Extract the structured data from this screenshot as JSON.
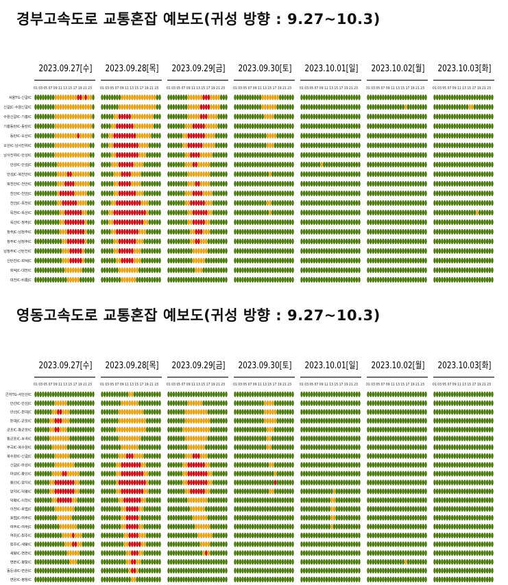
{
  "sections": [
    {
      "title": "경부고속도로 교통혼잡 예보도(귀성 방향 : 9.27~10.3)",
      "rows": [
        "서울TG-신갈IC",
        "신갈JC-수원신갈IC",
        "수원신갈IC-기흥IC",
        "기흥동탄IC-동탄IC",
        "동탄IC-오산IC",
        "오산IC-남사진위IC",
        "남사진위IC-안성IC",
        "안성IC-안성JC",
        "안성JC-북천안IC",
        "북천안IC-천안IC",
        "천안IC-천안JC",
        "천안JC-목천IC",
        "목천IC-옥산IC",
        "옥산IC-청주JC",
        "청주JC-남청주IC",
        "청주IC-남청주IC",
        "남청주IC-신탄진IC",
        "신탄진IC-회덕JC",
        "회덕JC-대전IC",
        "대전IC-비룡JC"
      ]
    },
    {
      "title": "영동고속도로 교통혼잡 예보도(귀성 방향 : 9.27~10.3)",
      "rows": [
        "군자TG-서안산IC",
        "안산IC-안산JC",
        "안산JC-둔대JC",
        "둔대JC-군포IC",
        "군포IC-동군포IC",
        "동군포IC-부곡IC",
        "부곡IC-북수원IC",
        "북수원IC-신갈JC",
        "신갈JC-마성IC",
        "마성IC-용인IC",
        "용인IC-양지IC",
        "양지IC-덕평IC",
        "덕평IC-이천IC",
        "이천IC-호법JC",
        "호법JC-여주IC",
        "여주IC-여주JC",
        "여주JC-원주IC",
        "원주IC-새말IC",
        "새말IC-면온IC",
        "면온IC-평창IC",
        "동둔내IC-면온IC",
        "면온IC-평창IC"
      ]
    }
  ],
  "days": [
    "2023.09.27[수]",
    "2023.09.28[목]",
    "2023.09.29[금]",
    "2023.09.30[토]",
    "2023.10.01[일]",
    "2023.10.02[월]",
    "2023.10.03[화]"
  ],
  "hour_axis": "01 03 05 07 09 11 13 15 17 19 21 23",
  "colors": {
    "smooth": "#4d7a12",
    "slow": "#e3a31c",
    "congested": "#c5121a"
  },
  "chart_data": [
    {
      "type": "heatmap",
      "title": "경부고속도로 교통혼잡 예보도(귀성 방향 : 9.27~10.3)",
      "value_scale": "0 = smooth (green), 1 = slow (orange), 2 = congested (red)",
      "hours": [
        1,
        2,
        3,
        4,
        5,
        6,
        7,
        8,
        9,
        10,
        11,
        12,
        13,
        14,
        15,
        16,
        17,
        18,
        19,
        20,
        21,
        22,
        23,
        24
      ],
      "series": [
        {
          "name": "2023.09.27[수]",
          "grid": [
            "000000001111111112212110",
            "000000001111111111111110",
            "000000001111111111111110",
            "000000001111111111111110",
            "000000001111111112111110",
            "000000001111111111111100",
            "000000001111111111111100",
            "000000000111111111111100",
            "000000000111122111111100",
            "000000000111222211111100",
            "000000000122222211111000",
            "000000000112222221111000",
            "000000000011222222211000",
            "000000000011222222221000",
            "000000000011122222221000",
            "000000000001122222221000",
            "000000000001112222210000",
            "000000000001112222210000",
            "000000000000111111100000",
            "000000000000011111000000"
          ]
        },
        {
          "name": "2023.09.28[목]",
          "grid": [
            "000000001111111111111100",
            "000000011111111111111100",
            "000001122222111111111000",
            "000011222222211111111000",
            "000112222222221111110000",
            "000112222222222111100000",
            "000011222222222111000000",
            "000011122222211110000000",
            "000001112222111100000000",
            "000001122222111100000000",
            "000001122222221110000000",
            "000011222222222211100000",
            "000112222222222222100000",
            "000112222222222221100000",
            "000011222222222111000000",
            "000001122222221110000000",
            "000001122222211100000000",
            "000000112222211100000000",
            "000000011111111000000000",
            "000000001111110000000000"
          ]
        },
        {
          "name": "2023.09.29[금]",
          "grid": [
            "000000001111112221111000",
            "000000001111122221111000",
            "000000001111122211110000",
            "000000011122222111110000",
            "000000112222222111100000",
            "000000112222221111100000",
            "000000011222211111000000",
            "000000011122111110000000",
            "000000001111111110000000",
            "000000001112211110000000",
            "000000011122221111000000",
            "000000011222222111000000",
            "000000001122222211000000",
            "000000001122222110000000",
            "000000000112221110000000",
            "000000000112211100000000",
            "000000000011111100000000",
            "000000000011111000000000",
            "000000000001110000000000",
            "000000000000000000000000"
          ]
        },
        {
          "name": "2023.09.30[토]",
          "grid": [
            "000000000001111111000000",
            "000000000001111110000000",
            "000000000000111100000000",
            "000000000000000000000000",
            "000000000000011110000000",
            "000000000000011100000000",
            "000000000000000000000000",
            "000000000000000000000000",
            "000000000000001000000000",
            "000000000000000000000000",
            "000000000000000000000000",
            "000000000000011000000000",
            "000000000000001000000000",
            "000000000000000000000000",
            "000000000000000000000000",
            "000000000000000000000000",
            "000000000000000000000000",
            "000000000000000000000000",
            "000000000000000000000000",
            "000000000000000000000000"
          ]
        },
        {
          "name": "2023.10.01[일]",
          "grid": [
            "000000000000000000000000",
            "000000000000000000000000",
            "000000000000000000000000",
            "000000000000000000000000",
            "000000000000000000000000",
            "000000000000000000000000",
            "000000000000000000000000",
            "000000001000000000000000",
            "000000000000000000000000",
            "000000000000000000000000",
            "000000000000000000000000",
            "000000000000000000000000",
            "000000000000000000000000",
            "000000000000000000000000",
            "000000000000000000000000",
            "000000000000000000000000",
            "000000000000000000000000",
            "000000000000000000000000",
            "000000000000000000000000",
            "000000000000000000000000"
          ]
        },
        {
          "name": "2023.10.02[월]",
          "grid": [
            "000000000000000000000000",
            "000000000000000100000000",
            "000000000000000000000000",
            "000000000000000000000000",
            "000000000000000000000000",
            "000000000000000000000000",
            "000000000000000000000000",
            "000000000000000000000000",
            "000000000000000000000000",
            "000000000000000000000000",
            "000000000000000000000000",
            "000000000000000000000000",
            "000000000000000000000000",
            "000000000000000000000000",
            "000000000000000000000000",
            "000000000000000000000000",
            "000000000000000000000000",
            "000000000000000000000000",
            "000000000000000000000000",
            "000000000000000000000000"
          ]
        },
        {
          "name": "2023.10.03[화]",
          "grid": [
            "000000000000000000000000",
            "000000000000001100000000",
            "000000000000000000000000",
            "000000000000000000000000",
            "000000000000000000000000",
            "000000000000000000000000",
            "000000000000000000000000",
            "000000000000000000000000",
            "000000000000000000000000",
            "000000000000000000000000",
            "000000000000000000000000",
            "000000000000000000000000",
            "000000000000000001000000",
            "000000000000000000000000",
            "000000000000000000000000",
            "000000000000000000000000",
            "000000000000000000000000",
            "000000000000000000000000",
            "000000000000000000000000",
            "000000000000000000000000"
          ]
        }
      ]
    },
    {
      "type": "heatmap",
      "title": "영동고속도로 교통혼잡 예보도(귀성 방향 : 9.27~10.3)",
      "value_scale": "0 = smooth (green), 1 = slow (orange), 2 = congested (red)",
      "hours": [
        1,
        2,
        3,
        4,
        5,
        6,
        7,
        8,
        9,
        10,
        11,
        12,
        13,
        14,
        15,
        16,
        17,
        18,
        19,
        20,
        21,
        22,
        23,
        24
      ],
      "series": [
        {
          "name": "2023.09.27[수]",
          "grid": [
            "000000000000000000000000",
            "000000001111100000000000",
            "000000011221110000000000",
            "000000112221110000000000",
            "000000112211100000000000",
            "000000111111110000000000",
            "000000011111100000000000",
            "000000001111110000000000",
            "000000001111111100000000",
            "000000011112211111000000",
            "000000112222222211000000",
            "000000112222222211000000",
            "000000011222222110000000",
            "000000001111111100000000",
            "000000000111111000000000",
            "000000000011111110000000",
            "000000000001111211100000",
            "000000000000111221100000",
            "000000000000011111000000",
            "000000000000001110000000",
            "000000000000000000000000",
            "000000000000000000000000"
          ]
        },
        {
          "name": "2023.09.28[목]",
          "grid": [
            "000000000001100000000000",
            "000000001111111000000000",
            "000000011111111110000000",
            "000000011111111111000000",
            "000000111111111111000000",
            "000000011111111100000000",
            "000000001111111000000000",
            "000000011122211110000000",
            "000000112222222211000000",
            "000000112222222221100000",
            "000000122222222222100000",
            "000000112222222221100000",
            "000000011222222211000000",
            "000000001122222110000000",
            "000000001122222100000000",
            "000000001122222110000000",
            "000000000112222111000000",
            "000000000112222211000000",
            "000000000011222110000000",
            "000000000011221100000000",
            "000000000001221000000000",
            "000000000000110000000000"
          ]
        },
        {
          "name": "2023.09.29[금]",
          "grid": [
            "000000000000000000000000",
            "000000001111110000000000",
            "000000011111111100000000",
            "000000011111111110000000",
            "000000111111111110000000",
            "000000011111111100000000",
            "000000001111111000000000",
            "000000011122211100000000",
            "000000112222222110000000",
            "000000112222222211000000",
            "000000112222222211000000",
            "000000011222222110000000",
            "000000001111111100000000",
            "000000000111111000000000",
            "000000000011111100000000",
            "000000000001111110000000",
            "000000000000111111000000",
            "000000000000011110000000",
            "000000000000001210000000",
            "000000000000000000000000",
            "000000000000000000000000",
            "000000000000000000000000"
          ]
        },
        {
          "name": "2023.09.30[토]",
          "grid": [
            "000000000000000000000000",
            "000000000000111100000000",
            "000000000000111110000000",
            "000000000000111110000000",
            "000000000000011100000000",
            "000000000000011000000000",
            "000000000000011000000000",
            "000000000000000000000000",
            "000000000000001100000000",
            "000000000000000010000000",
            "000000000000000020000000",
            "000000000000001100000000",
            "000000000000000000000000",
            "000000000000000000000000",
            "000000000000000000000000",
            "000000000000000000000000",
            "000000000000000000000000",
            "000000000000000000000000",
            "000000000000000000000000",
            "000000000000000000000000",
            "000000000000000000000000",
            "000000000000000000000000"
          ]
        },
        {
          "name": "2023.10.01[일]",
          "grid": [
            "000000000000000000000000",
            "000000000000000000000000",
            "000000000000000000000000",
            "000000000000000000000000",
            "000000000000000000000000",
            "000000000000000000000000",
            "000000000000000000000000",
            "000000000000000000000000",
            "000000000000000000000000",
            "000000000000000000000000",
            "000000000000000000000000",
            "000000000000010000000000",
            "000000000000110000000000",
            "000000000000110000000000",
            "000000000000110000000000",
            "000000000000100000000000",
            "000000000000000000000000",
            "000000000000000000000000",
            "000000000000000000000000",
            "000000000000000000000000",
            "000000000000000000000000",
            "000000000000000000000000"
          ]
        },
        {
          "name": "2023.10.02[월]",
          "grid": [
            "000000000000000000000000",
            "000000000000000000000000",
            "000000000000000000000000",
            "000000000000000000000000",
            "000000000000000000000000",
            "000000000000000000000000",
            "000000000000000000000000",
            "000000000000000000000000",
            "000000000000000000000000",
            "000000000000000000000000",
            "000000000000000000000000",
            "000000000000000000000000",
            "000000000000000000000000",
            "000000000000000000000000",
            "000000000000000000000000",
            "000000000000000000000000",
            "000000000000000000000000",
            "000000000000000000000000",
            "000000000000000000000000",
            "000000000000000100000000",
            "000000000000000000000000",
            "000000000000000000000000"
          ]
        },
        {
          "name": "2023.10.03[화]",
          "grid": [
            "000000000000000000000000",
            "000000000000000000000000",
            "000000000000000000000000",
            "000000000000000000000000",
            "000000000000000000000000",
            "000000000000000000000000",
            "000000000000000000000000",
            "000000000000000000000000",
            "000000000000000000000000",
            "000000000000000000000000",
            "000000000000000000000000",
            "000000000000000000000000",
            "000000000000000000000000",
            "000000000000000000000000",
            "000000000000000000000000",
            "000000000000000000000000",
            "000000000000000000000000",
            "000000000000000000000000",
            "000000000000000000000000",
            "000000000000000000000000",
            "000000000000000000000000",
            "000000000000000000000000"
          ]
        }
      ]
    }
  ]
}
